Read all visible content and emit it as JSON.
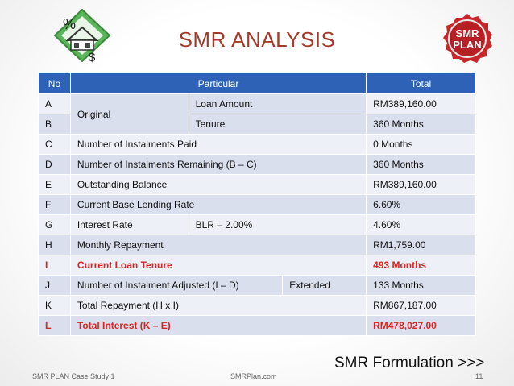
{
  "title": "SMR ANALYSIS",
  "logo_right_text": [
    "SMR",
    "PLAN"
  ],
  "table": {
    "headers": {
      "no": "No",
      "particular": "Particular",
      "total": "Total"
    },
    "rows": [
      {
        "no": "A",
        "group": "Original",
        "label": "Loan Amount",
        "total": "RM389,160.00"
      },
      {
        "no": "B",
        "label": "Tenure",
        "total": "360 Months"
      },
      {
        "no": "C",
        "label": "Number of Instalments Paid",
        "total": "0 Months"
      },
      {
        "no": "D",
        "label": "Number of Instalments Remaining (B – C)",
        "total": "360 Months"
      },
      {
        "no": "E",
        "label": "Outstanding Balance",
        "total": "RM389,160.00"
      },
      {
        "no": "F",
        "label": "Current Base Lending Rate",
        "total": "6.60%"
      },
      {
        "no": "G",
        "label": "Interest Rate",
        "extra": "BLR – 2.00%",
        "total": "4.60%"
      },
      {
        "no": "H",
        "label": "Monthly Repayment",
        "total": "RM1,759.00"
      },
      {
        "no": "I",
        "label": "Current Loan Tenure",
        "total": "493 Months",
        "highlight": true
      },
      {
        "no": "J",
        "label": "Number of Instalment Adjusted (I – D)",
        "extra": "Extended",
        "total": "133 Months"
      },
      {
        "no": "K",
        "label": "Total Repayment (H x I)",
        "total": "RM867,187.00"
      },
      {
        "no": "L",
        "label": "Total Interest (K – E)",
        "total": "RM478,027.00",
        "highlight": true
      }
    ]
  },
  "formulation_link": "SMR Formulation >>>",
  "footer": {
    "left": "SMR PLAN Case Study 1",
    "center": "SMRPlan.com",
    "page": "11"
  },
  "colors": {
    "header_bg": "#2e62b6",
    "title": "#a63a2a",
    "highlight": "#e02020",
    "row_odd": "#d9dfec",
    "row_even": "#edf0f6"
  }
}
